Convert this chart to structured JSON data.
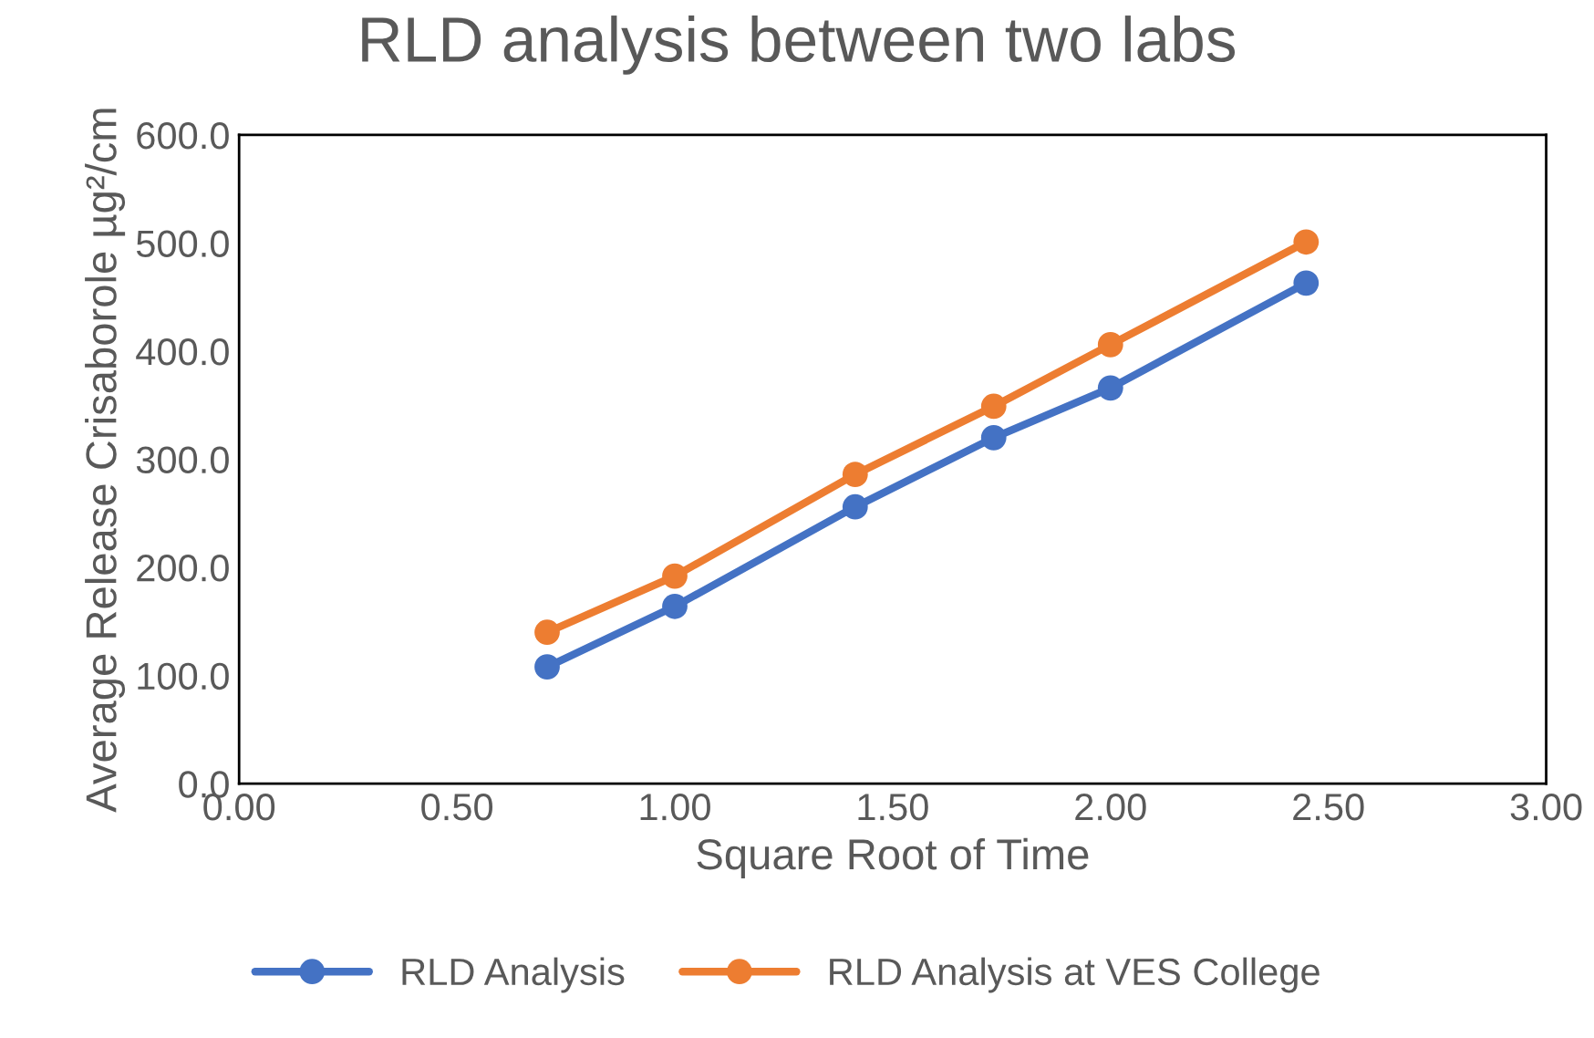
{
  "chart_data": {
    "type": "line",
    "title": "RLD analysis between two labs",
    "xlabel": "Square Root of Time",
    "ylabel": "Average Release Crisaborole µg²/cm",
    "x": [
      0.707,
      1.0,
      1.414,
      1.732,
      2.0,
      2.449
    ],
    "series": [
      {
        "name": "RLD Analysis",
        "color": "#4472c4",
        "values": [
          108,
          164,
          256,
          320,
          366,
          463
        ]
      },
      {
        "name": "RLD Analysis at VES College",
        "color": "#ed7d31",
        "values": [
          140,
          192,
          286,
          349,
          406,
          501
        ]
      }
    ],
    "xlim": [
      0,
      3
    ],
    "xticks": [
      {
        "value": 0,
        "label": "0.00"
      },
      {
        "value": 0.5,
        "label": "0.50"
      },
      {
        "value": 1,
        "label": "1.00"
      },
      {
        "value": 1.5,
        "label": "1.50"
      },
      {
        "value": 2,
        "label": "2.00"
      },
      {
        "value": 2.5,
        "label": "2.50"
      },
      {
        "value": 3,
        "label": "3.00"
      }
    ],
    "ylim": [
      0,
      600
    ],
    "yticks": [
      {
        "value": 0,
        "label": "0.0"
      },
      {
        "value": 100,
        "label": "100.0"
      },
      {
        "value": 200,
        "label": "200.0"
      },
      {
        "value": 300,
        "label": "300.0"
      },
      {
        "value": 400,
        "label": "400.0"
      },
      {
        "value": 500,
        "label": "500.0"
      },
      {
        "value": 600,
        "label": "600.0"
      }
    ],
    "grid": false,
    "legend": "bottom",
    "marker": "circle",
    "line_style": "solid"
  }
}
